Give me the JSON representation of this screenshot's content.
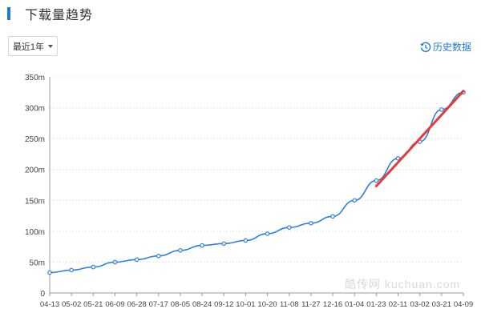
{
  "header": {
    "title": "下载量趋势"
  },
  "controls": {
    "range_label": "最近1年",
    "history_label": "历史数据"
  },
  "watermark": "酷传网 kuchuan.com",
  "colors": {
    "accent": "#1f78e0",
    "line": "#2f7fe0",
    "trend": "#e63a3a",
    "grid": "#e6e6e6"
  },
  "icons": {
    "range_caret": "caret-down-icon",
    "history": "history-clock-icon"
  },
  "chart_data": {
    "type": "line",
    "title": "",
    "xlabel": "",
    "ylabel": "",
    "ylim": [
      0,
      350
    ],
    "yticks": [
      "0",
      "50m",
      "100m",
      "150m",
      "200m",
      "250m",
      "300m",
      "350m"
    ],
    "ytick_values": [
      0,
      50,
      100,
      150,
      200,
      250,
      300,
      350
    ],
    "categories": [
      "04-13",
      "05-02",
      "05-21",
      "06-09",
      "06-28",
      "07-17",
      "08-05",
      "08-24",
      "09-12",
      "10-01",
      "10-20",
      "11-08",
      "11-27",
      "12-16",
      "01-04",
      "01-23",
      "02-11",
      "03-02",
      "03-21",
      "04-09"
    ],
    "grid": true,
    "series": [
      {
        "name": "",
        "unit": "m",
        "values": [
          33,
          37,
          42,
          50,
          54,
          60,
          69,
          77,
          80,
          85,
          96,
          106,
          113,
          124,
          150,
          182,
          218,
          245,
          297,
          325
        ],
        "markers": true
      },
      {
        "name": "",
        "style": "trend",
        "x_from": "01-23",
        "y_from": 173,
        "x_to": "04-09",
        "y_to": 327
      }
    ]
  }
}
